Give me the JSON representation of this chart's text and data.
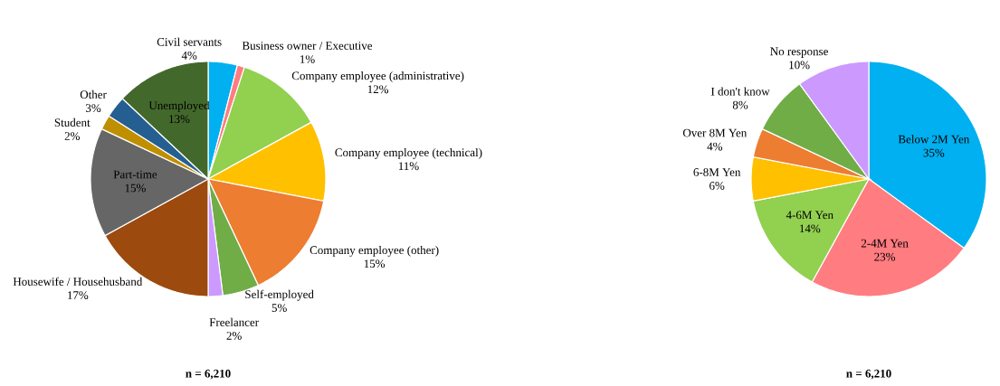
{
  "chart_data": [
    {
      "type": "pie",
      "categories": [
        "Civil servants",
        "Business owner / Executive",
        "Company employee (administrative)",
        "Company employee (technical)",
        "Company employee (other)",
        "Self-employed",
        "Freelancer",
        "Housewife / Househusband",
        "Part-time",
        "Student",
        "Other",
        "Unemployed"
      ],
      "values": [
        4,
        1,
        12,
        11,
        15,
        5,
        2,
        17,
        15,
        2,
        3,
        13
      ],
      "value_labels": [
        "4%",
        "1%",
        "12%",
        "11%",
        "15%",
        "5%",
        "2%",
        "17%",
        "15%",
        "2%",
        "3%",
        "13%"
      ],
      "colors": [
        "#00b0f0",
        "#ff7c80",
        "#92d050",
        "#ffc000",
        "#ed7d31",
        "#70ad47",
        "#cc99ff",
        "#9c4a0e",
        "#666666",
        "#bf8f00",
        "#255e91",
        "#43682b"
      ],
      "annotations": [
        "n = 6,210"
      ]
    },
    {
      "type": "pie",
      "categories": [
        "Below 2M Yen",
        "2-4M Yen",
        "4-6M Yen",
        "6-8M Yen",
        "Over 8M Yen",
        "I don't know",
        "No response"
      ],
      "values": [
        35,
        23,
        14,
        6,
        4,
        8,
        10
      ],
      "value_labels": [
        "35%",
        "23%",
        "14%",
        "6%",
        "4%",
        "8%",
        "10%"
      ],
      "colors": [
        "#00b0f0",
        "#ff7c80",
        "#92d050",
        "#ffc000",
        "#ed7d31",
        "#70ad47",
        "#cc99ff"
      ],
      "annotations": [
        "n = 6,210"
      ]
    }
  ]
}
